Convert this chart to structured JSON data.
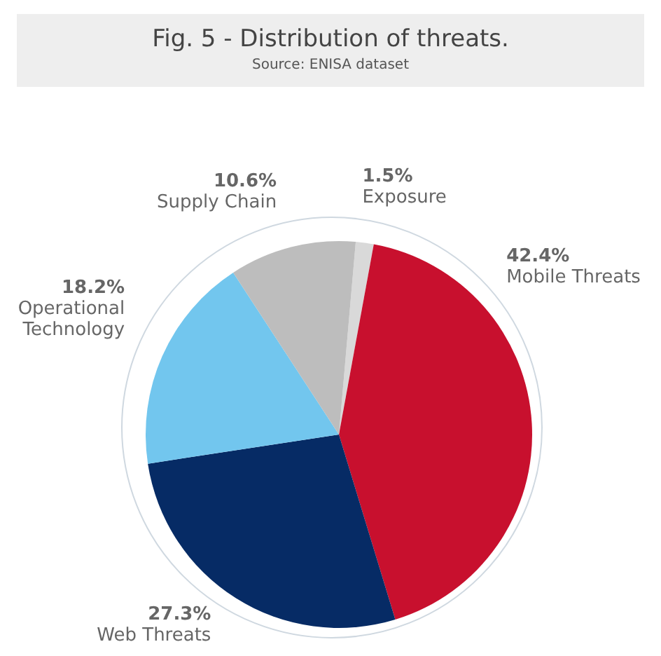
{
  "chart_data": {
    "type": "pie",
    "title": "Fig. 5 - Distribution of threats.",
    "subtitle": "Source: ENISA dataset",
    "categories": [
      "Exposure",
      "Mobile Threats",
      "Web Threats",
      "Operational Technology",
      "Supply Chain"
    ],
    "values": [
      1.5,
      42.4,
      27.3,
      18.2,
      10.6
    ],
    "value_labels": [
      "1.5%",
      "42.4%",
      "27.3%",
      "18.2%",
      "10.6%"
    ],
    "colors": [
      "#d9d9d9",
      "#c8102e",
      "#062b65",
      "#72c6ee",
      "#bdbdbd"
    ]
  }
}
